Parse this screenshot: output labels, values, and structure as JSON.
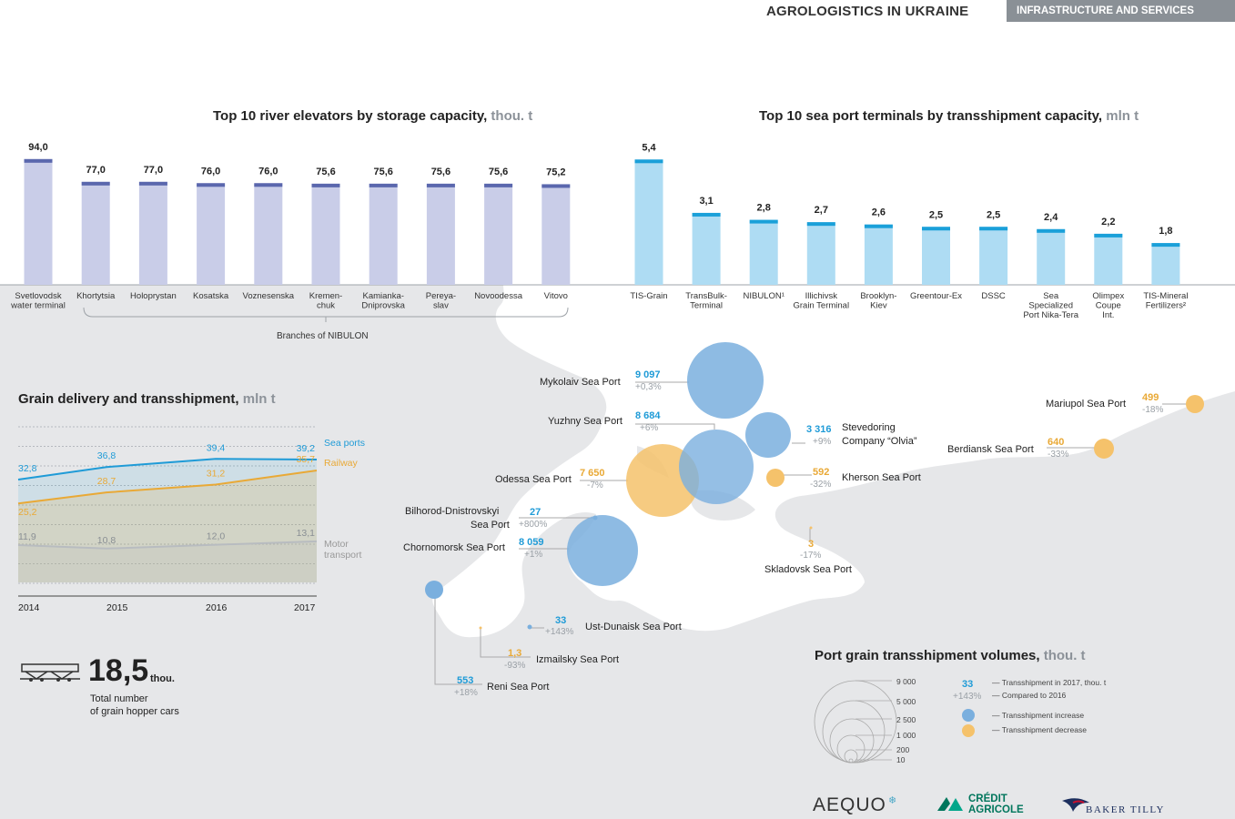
{
  "header": {
    "title": "AGROLOGISTICS IN UKRAINE",
    "tag": "INFRASTRUCTURE AND SERVICES"
  },
  "river": {
    "title": "Top 10 river elevators by storage capacity,",
    "unit": "thou. t",
    "branches_label": "Branches of NIBULON"
  },
  "sea": {
    "title": "Top 10 sea port terminals by transshipment capacity,",
    "unit": "mln t"
  },
  "grain": {
    "title": "Grain delivery and transshipment,",
    "unit": "mln t",
    "years": [
      "2014",
      "2015",
      "2016",
      "2017"
    ],
    "series_labels": {
      "sea": "Sea ports",
      "rail": "Railway",
      "motor1": "Motor",
      "motor2": "transport"
    }
  },
  "hopper": {
    "value": "18,5",
    "unit": "thou.",
    "line1": "Total number",
    "line2": "of grain hopper cars"
  },
  "ports": [
    {
      "name": "Mykolaiv Sea Port",
      "value": "9 097",
      "change": "+0,3%",
      "type": "inc"
    },
    {
      "name": "Yuzhny Sea Port",
      "value": "8 684",
      "change": "+6%",
      "type": "inc"
    },
    {
      "name": "Stevedoring",
      "name2": "Company “Olvia”",
      "value": "3 316",
      "change": "+9%",
      "type": "inc"
    },
    {
      "name": "Odessa Sea Port",
      "value": "7 650",
      "change": "-7%",
      "type": "dec"
    },
    {
      "name": "Kherson Sea Port",
      "value": "592",
      "change": "-32%",
      "type": "dec"
    },
    {
      "name": "Bilhorod-Dnistrovskyi",
      "name2": "Sea Port",
      "value": "27",
      "change": "+800%",
      "type": "inc"
    },
    {
      "name": "Chornomorsk Sea Port",
      "value": "8 059",
      "change": "+1%",
      "type": "inc"
    },
    {
      "name": "Skladovsk Sea Port",
      "value": "3",
      "change": "-17%",
      "type": "dec"
    },
    {
      "name": "Ust-Dunaisk Sea Port",
      "value": "33",
      "change": "+143%",
      "type": "inc"
    },
    {
      "name": "Izmailsky Sea Port",
      "value": "1,3",
      "change": "-93%",
      "type": "dec"
    },
    {
      "name": "Reni Sea Port",
      "value": "553",
      "change": "+18%",
      "type": "inc"
    },
    {
      "name": "Mariupol Sea Port",
      "value": "499",
      "change": "-18%",
      "type": "dec"
    },
    {
      "name": "Berdiansk Sea Port",
      "value": "640",
      "change": "-33%",
      "type": "dec"
    }
  ],
  "port_legend": {
    "title": "Port grain transshipment volumes,",
    "unit": "thou. t",
    "scale": [
      "9 000",
      "5 000",
      "2 500",
      "1 000",
      "200",
      "10"
    ],
    "sample_value": "33",
    "sample_change": "+143%",
    "l1": "— Transshipment in 2017, thou. t",
    "l2": "— Compared to 2016",
    "l3": "— Transshipment increase",
    "l4": "— Transshipment decrease"
  },
  "logos": {
    "aequo": "AEQUO",
    "ca1": "CRÉDIT",
    "ca2": "AGRICOLE",
    "bt": "BAKER TILLY"
  },
  "colors": {
    "increase": "#7aafde",
    "decrease": "#f5c26b",
    "sea": "#1f9bd7",
    "rail": "#e9a936",
    "motor": "#b8bcc0",
    "river_bar": "#c9cde8",
    "river_cap": "#5a67ad",
    "sea_bar": "#aedcf3",
    "sea_cap": "#1aa0d9"
  },
  "chart_data": [
    {
      "type": "bar",
      "title": "Top 10 river elevators by storage capacity, thou. t",
      "categories": [
        "Svetlovodsk water terminal",
        "Khortytsia",
        "Holoprystan",
        "Kosatska",
        "Voznesenska",
        "Kremen-chuk",
        "Kamianka-Dniprovska",
        "Pereya-slav",
        "Novoodessa",
        "Vitovo"
      ],
      "labels": [
        "94,0",
        "77,0",
        "77,0",
        "76,0",
        "76,0",
        "75,6",
        "75,6",
        "75,6",
        "75,6",
        "75,2"
      ],
      "values": [
        94.0,
        77.0,
        77.0,
        76.0,
        76.0,
        75.6,
        75.6,
        75.6,
        75.6,
        75.2
      ]
    },
    {
      "type": "bar",
      "title": "Top 10 sea port terminals by transshipment capacity, mln t",
      "categories": [
        "TIS-Grain",
        "TransBulk-Terminal",
        "NIBULON¹",
        "Illichivsk Grain Terminal",
        "Brooklyn-Kiev",
        "Greentour-Ex",
        "DSSC",
        "Sea Specialized Port Nika-Tera",
        "Olimpex Coupe Int.",
        "TIS-Mineral Fertilizers²"
      ],
      "labels": [
        "5,4",
        "3,1",
        "2,8",
        "2,7",
        "2,6",
        "2,5",
        "2,5",
        "2,4",
        "2,2",
        "1,8"
      ],
      "values": [
        5.4,
        3.1,
        2.8,
        2.7,
        2.6,
        2.5,
        2.5,
        2.4,
        2.2,
        1.8
      ]
    },
    {
      "type": "line",
      "title": "Grain delivery and transshipment, mln t",
      "x": [
        "2014",
        "2015",
        "2016",
        "2017"
      ],
      "series": [
        {
          "name": "Sea ports",
          "values": [
            32.8,
            36.8,
            39.4,
            39.2
          ],
          "labels": [
            "32,8",
            "36,8",
            "39,4",
            "39,2"
          ]
        },
        {
          "name": "Railway",
          "values": [
            25.2,
            28.7,
            31.2,
            35.7
          ],
          "labels": [
            "25,2",
            "28,7",
            "31,2",
            "35,7"
          ]
        },
        {
          "name": "Motor transport",
          "values": [
            11.9,
            10.8,
            12.0,
            13.1
          ],
          "labels": [
            "11,9",
            "10,8",
            "12,0",
            "13,1"
          ]
        }
      ]
    }
  ]
}
